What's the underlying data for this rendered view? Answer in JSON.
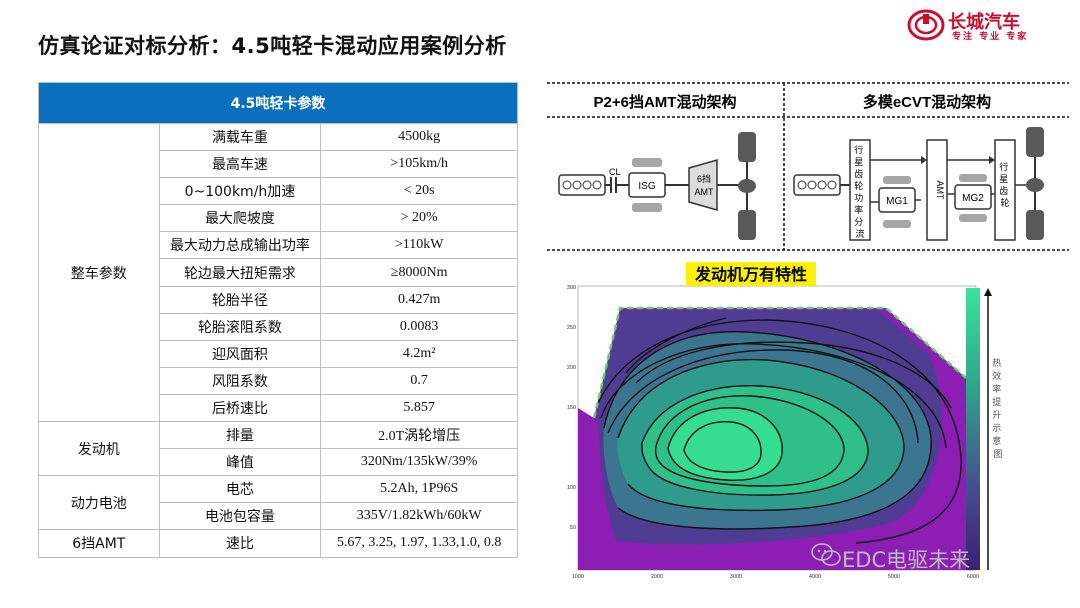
{
  "header": {
    "title": "仿真论证对标分析：4.5吨轻卡混动应用案例分析",
    "logo_text": "长城汽车",
    "logo_slogan": "专注 专业 专家"
  },
  "table": {
    "header": "4.5吨轻卡参数",
    "groups": [
      {
        "name": "整车参数",
        "rows": [
          {
            "param": "满载车重",
            "value": "4500kg"
          },
          {
            "param": "最高车速",
            "value": ">105km/h"
          },
          {
            "param": "0~100km/h加速",
            "value": "< 20s"
          },
          {
            "param": "最大爬坡度",
            "value": "> 20%"
          },
          {
            "param": "最大动力总成输出功率",
            "value": ">110kW"
          },
          {
            "param": "轮边最大扭矩需求",
            "value": "≥8000Nm"
          },
          {
            "param": "轮胎半径",
            "value": "0.427m"
          },
          {
            "param": "轮胎滚阻系数",
            "value": "0.0083"
          },
          {
            "param": "迎风面积",
            "value": "4.2m²"
          },
          {
            "param": "风阻系数",
            "value": "0.7"
          },
          {
            "param": "后桥速比",
            "value": "5.857"
          }
        ]
      },
      {
        "name": "发动机",
        "rows": [
          {
            "param": "排量",
            "value": "2.0T涡轮增压"
          },
          {
            "param": "峰值",
            "value": "320Nm/135kW/39%"
          }
        ]
      },
      {
        "name": "动力电池",
        "rows": [
          {
            "param": "电芯",
            "value": "5.2Ah, 1P96S"
          },
          {
            "param": "电池包容量",
            "value": "335V/1.82kWh/60kW"
          }
        ]
      },
      {
        "name": "6挡AMT",
        "rows": [
          {
            "param": "速比",
            "value": "5.67, 3.25, 1.97, 1.33,1.0, 0.8"
          }
        ]
      }
    ]
  },
  "architectures": {
    "left": {
      "title": "P2+6挡AMT混动架构",
      "labels": {
        "cl": "CL",
        "isg": "ISG",
        "amt_top": "6挡",
        "amt_bottom": "AMT"
      }
    },
    "right": {
      "title": "多模eCVT混动架构",
      "labels": {
        "split": [
          "行",
          "星",
          "齿",
          "轮",
          "功",
          "率",
          "分",
          "流"
        ],
        "amt": "AMT",
        "mg1": "MG1",
        "mg2": "MG2",
        "planet": [
          "行",
          "星",
          "齿",
          "轮"
        ]
      }
    }
  },
  "efficiency_map": {
    "title": "发动机万有特性",
    "y_ticks": [
      "300",
      "250",
      "200",
      "150",
      "100",
      "50"
    ],
    "x_ticks": [
      "1000",
      "2000",
      "3000",
      "4000",
      "5000",
      "6000"
    ],
    "colorbar_label": [
      "热",
      "效",
      "率",
      "提",
      "升",
      "示",
      "意",
      "图"
    ]
  },
  "watermark": "EDC电驱未来"
}
